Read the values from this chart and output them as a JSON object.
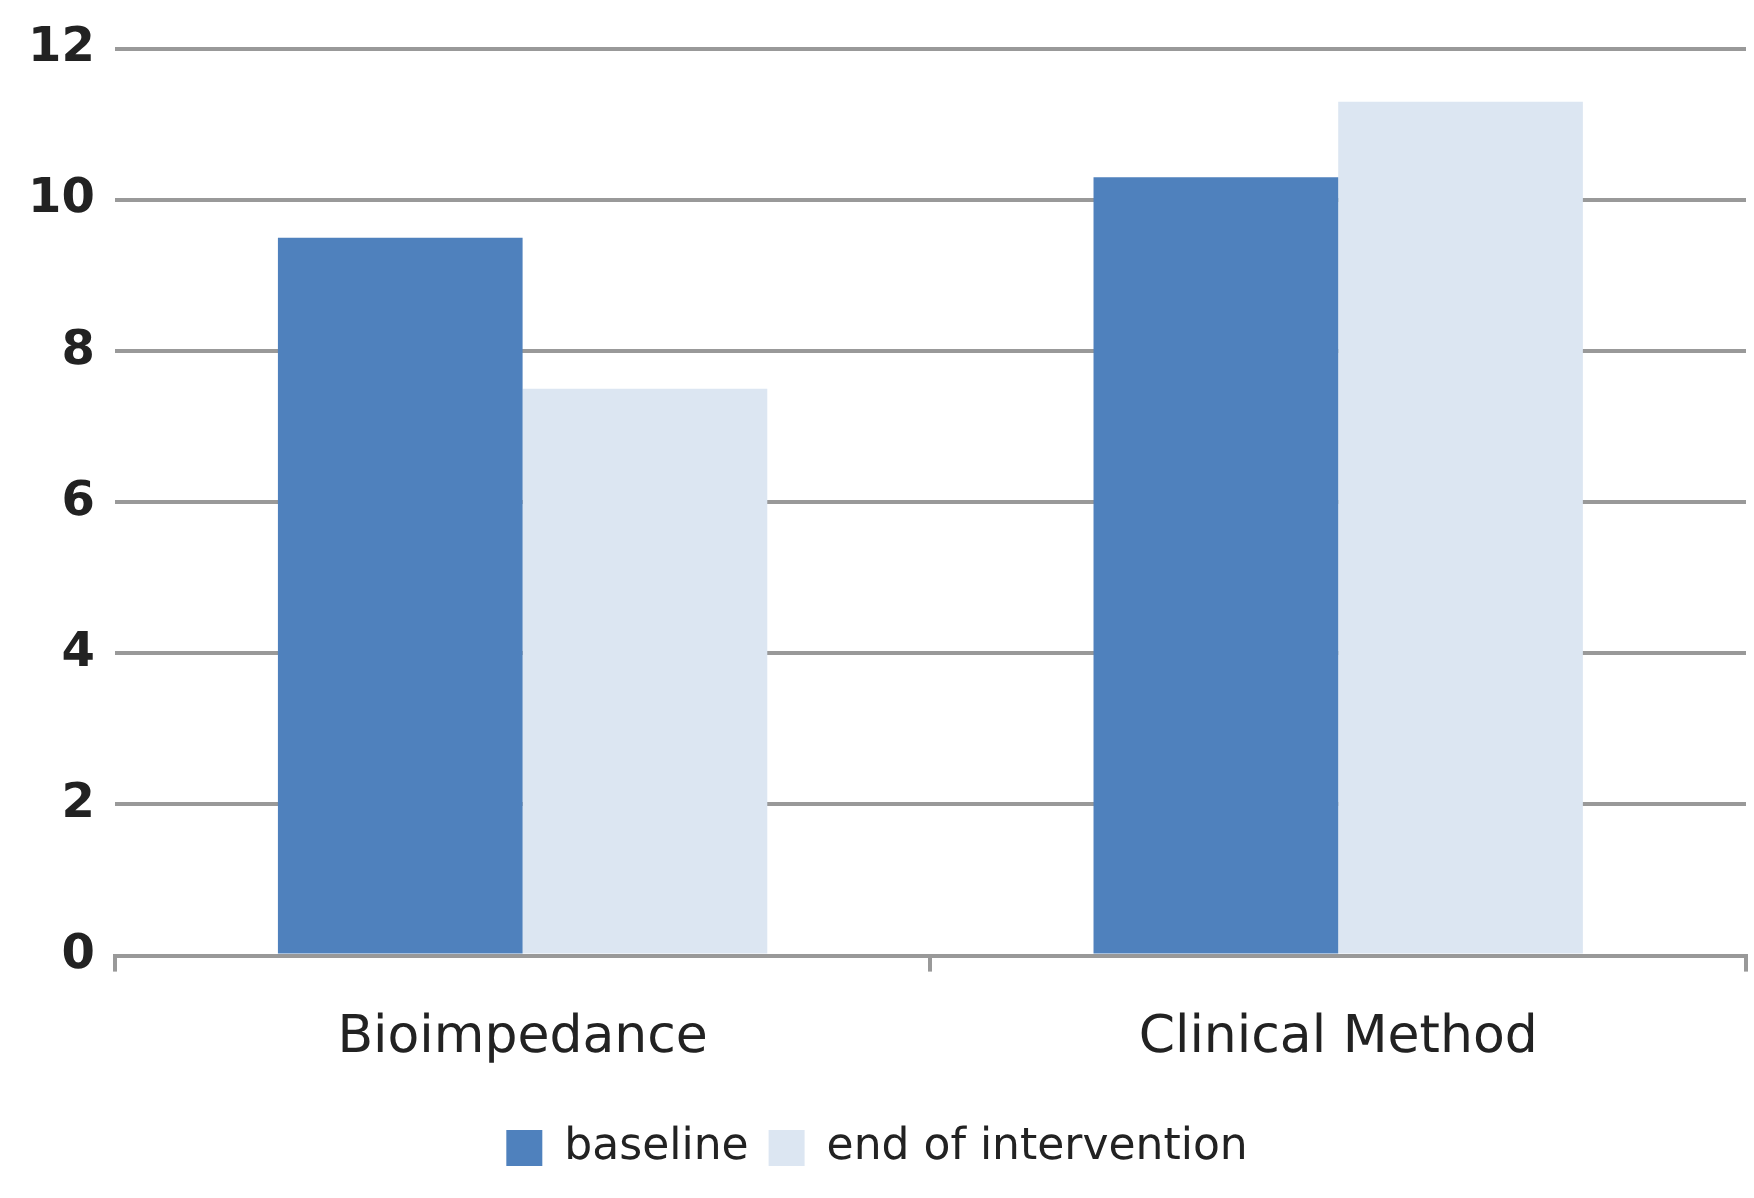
{
  "chart_data": {
    "type": "bar",
    "categories": [
      "Bioimpedance",
      "Clinical Method"
    ],
    "series": [
      {
        "name": "baseline",
        "color": "#4f81bd",
        "values": [
          9.5,
          10.3
        ]
      },
      {
        "name": "end of intervention",
        "color": "#dce6f2",
        "values": [
          7.5,
          11.3
        ]
      }
    ],
    "ylim": [
      0,
      12
    ],
    "yticks": [
      0,
      2,
      4,
      6,
      8,
      10,
      12
    ],
    "grid": "y",
    "legend": "bottom"
  }
}
